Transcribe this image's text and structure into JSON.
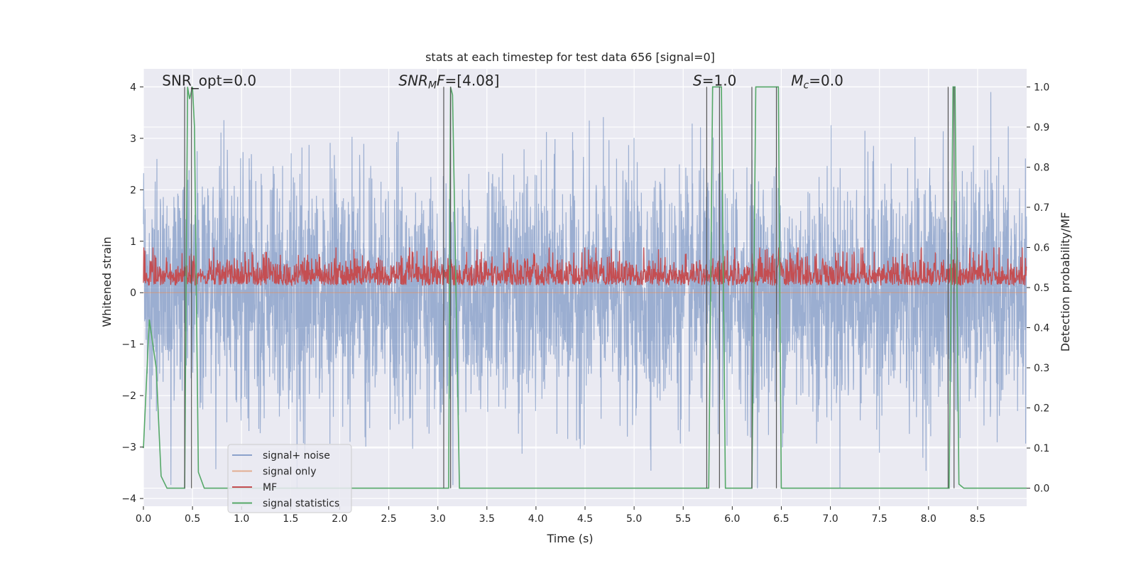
{
  "chart_data": {
    "type": "line",
    "title": "stats at each timestep for test data 656 [signal=0]",
    "xlabel": "Time (s)",
    "ylabel": "Whitened strain",
    "ylabel_right": "Detection probability/MF",
    "xlim": [
      0,
      9.0
    ],
    "ylim": [
      -4.15,
      4.35
    ],
    "ylim_right": [
      -0.045,
      1.045
    ],
    "xticks": [
      0.0,
      0.5,
      1.0,
      1.5,
      2.0,
      2.5,
      3.0,
      3.5,
      4.0,
      4.5,
      5.0,
      5.5,
      6.0,
      6.5,
      7.0,
      7.5,
      8.0,
      8.5
    ],
    "xtick_labels": [
      "0.0",
      "0.5",
      "1.0",
      "1.5",
      "2.0",
      "2.5",
      "3.0",
      "3.5",
      "4.0",
      "4.5",
      "5.0",
      "5.5",
      "6.0",
      "6.5",
      "7.0",
      "7.5",
      "8.0",
      "8.5"
    ],
    "yticks": [
      -4,
      -3,
      -2,
      -1,
      0,
      1,
      2,
      3,
      4
    ],
    "ytick_labels": [
      "−4",
      "−3",
      "−2",
      "−1",
      "0",
      "1",
      "2",
      "3",
      "4"
    ],
    "yticks_right": [
      0.0,
      0.1,
      0.2,
      0.3,
      0.4,
      0.5,
      0.6,
      0.7,
      0.8,
      0.9,
      1.0
    ],
    "ytick_labels_right": [
      "0.0",
      "0.1",
      "0.2",
      "0.3",
      "0.4",
      "0.5",
      "0.6",
      "0.7",
      "0.8",
      "0.9",
      "1.0"
    ],
    "grid": true,
    "legend_position": "bottom-left",
    "annotations": [
      {
        "text": "SNR_opt=0.0",
        "x": 0.19,
        "y": 4.0
      },
      {
        "html": "SNR<sub>MF</sub>=[4.08]",
        "prefix": "SNR",
        "italic_sub": "M",
        "italic_sub2": "F",
        "suffix": "=[4.08]",
        "x": 2.6,
        "y": 4.0
      },
      {
        "prefix": "S",
        "suffix": "=1.0",
        "x": 5.6,
        "y": 4.0
      },
      {
        "prefix": "M",
        "sub": "c",
        "suffix": "=0.0",
        "x": 6.6,
        "y": 4.0
      }
    ],
    "series": [
      {
        "name": "signal+ noise",
        "color": "#4c72b0",
        "axis": "left",
        "kind": "dense-noise",
        "amplitude_sd": 1.0,
        "range": [
          -3.8,
          3.9
        ]
      },
      {
        "name": "signal only",
        "color": "#dd8452",
        "axis": "left",
        "x": [
          0.0,
          9.0
        ],
        "y": [
          0.0,
          0.0
        ]
      },
      {
        "name": "MF",
        "color": "#c44e52",
        "axis": "right",
        "kind": "dense-band",
        "range": [
          0.5,
          0.6
        ]
      },
      {
        "name": "signal statistics",
        "color": "#55a868",
        "axis": "right",
        "x": [
          0.0,
          0.06,
          0.13,
          0.18,
          0.24,
          0.4,
          0.42,
          0.45,
          0.47,
          0.5,
          0.52,
          0.56,
          0.62,
          3.07,
          3.11,
          3.13,
          3.15,
          3.22,
          5.75,
          5.76,
          5.8,
          5.85,
          5.89,
          5.93,
          5.94,
          6.18,
          6.2,
          6.24,
          6.27,
          6.44,
          6.47,
          6.5,
          6.51,
          8.2,
          8.21,
          8.25,
          8.27,
          8.31,
          8.36,
          9.0
        ],
        "y": [
          0.1,
          0.42,
          0.3,
          0.03,
          0.0,
          0.0,
          0.0,
          1.0,
          0.97,
          1.0,
          0.9,
          0.04,
          0.0,
          0.0,
          0.0,
          1.0,
          0.98,
          0.0,
          0.0,
          0.0,
          1.0,
          1.0,
          1.0,
          0.0,
          0.0,
          0.0,
          0.0,
          1.0,
          1.0,
          1.0,
          1.0,
          0.0,
          0.0,
          0.0,
          0.0,
          1.0,
          1.0,
          0.01,
          0.0,
          0.0
        ]
      }
    ],
    "vlines": [
      {
        "x": 0.42,
        "color": "#555555",
        "axis": "right",
        "from": 0.0,
        "to": 1.0
      },
      {
        "x": 0.49,
        "color": "#555555",
        "axis": "right",
        "from": 0.0,
        "to": 1.0
      },
      {
        "x": 3.06,
        "color": "#555555",
        "axis": "right",
        "from": 0.0,
        "to": 1.0
      },
      {
        "x": 3.13,
        "color": "#555555",
        "axis": "right",
        "from": 0.0,
        "to": 1.0
      },
      {
        "x": 5.74,
        "color": "#555555",
        "axis": "right",
        "from": 0.0,
        "to": 1.0
      },
      {
        "x": 5.87,
        "color": "#555555",
        "axis": "right",
        "from": 0.0,
        "to": 1.0
      },
      {
        "x": 6.2,
        "color": "#555555",
        "axis": "right",
        "from": 0.0,
        "to": 1.0
      },
      {
        "x": 6.45,
        "color": "#555555",
        "axis": "right",
        "from": 0.0,
        "to": 1.0
      },
      {
        "x": 8.2,
        "color": "#555555",
        "axis": "right",
        "from": 0.0,
        "to": 1.0
      },
      {
        "x": 8.26,
        "color": "#555555",
        "axis": "right",
        "from": 0.0,
        "to": 1.0
      }
    ],
    "colors": {
      "plot_bg": "#eaeaf2",
      "grid": "#ffffff",
      "text": "#262626",
      "legend_bg": "#eaeaf2",
      "legend_border": "#cccccc"
    }
  }
}
